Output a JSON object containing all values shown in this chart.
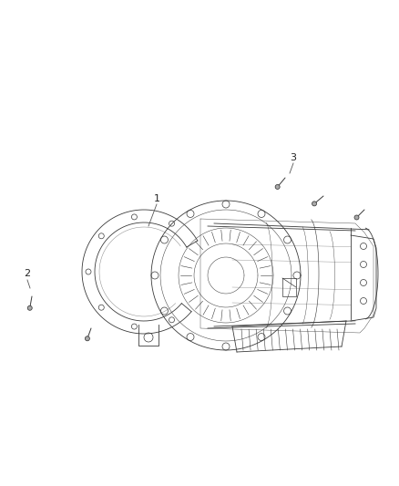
{
  "background_color": "#ffffff",
  "fig_width": 4.38,
  "fig_height": 5.33,
  "dpi": 100,
  "label1": "1",
  "label2": "2",
  "label3": "3",
  "line_color": "#3a3a3a",
  "light_gray": "#aaaaaa",
  "mid_gray": "#666666"
}
